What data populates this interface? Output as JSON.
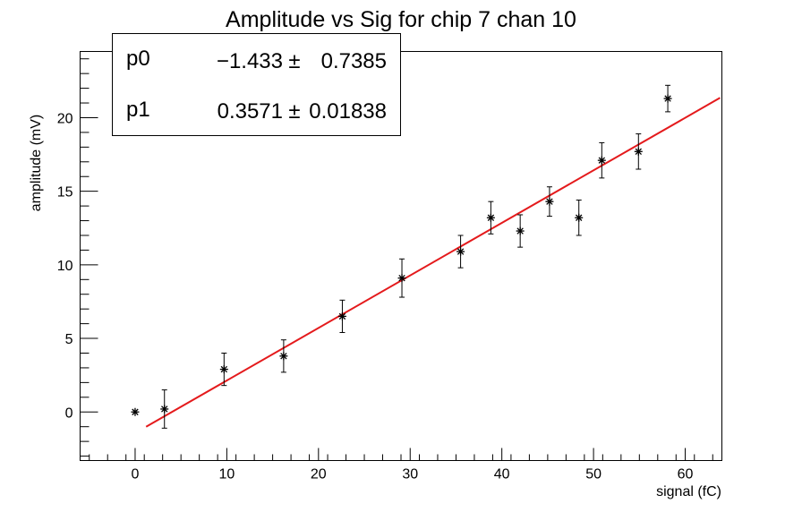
{
  "chart_data": {
    "type": "scatter",
    "title": "Amplitude vs Sig for chip 7 chan 10",
    "xlabel": "signal (fC)",
    "ylabel": "amplitude (mV)",
    "xlim": [
      -6,
      64
    ],
    "ylim": [
      -3.3,
      24.5
    ],
    "xticks": [
      0,
      10,
      20,
      30,
      40,
      50,
      60
    ],
    "xtick_labels": [
      "0",
      "10",
      "20",
      "30",
      "40",
      "50",
      "60"
    ],
    "yticks": [
      0,
      5,
      10,
      15,
      20
    ],
    "ytick_labels": [
      "0",
      "5",
      "10",
      "15",
      "20"
    ],
    "grid": false,
    "series": [
      {
        "marker": "star",
        "color": "#000000",
        "points": [
          {
            "x": 0.0,
            "y": 0.0,
            "err": 0.0
          },
          {
            "x": 3.2,
            "y": 0.2,
            "err": 1.3
          },
          {
            "x": 9.7,
            "y": 2.9,
            "err": 1.1
          },
          {
            "x": 16.2,
            "y": 3.8,
            "err": 1.1
          },
          {
            "x": 22.6,
            "y": 6.5,
            "err": 1.1
          },
          {
            "x": 29.1,
            "y": 9.1,
            "err": 1.3
          },
          {
            "x": 35.5,
            "y": 10.9,
            "err": 1.1
          },
          {
            "x": 38.8,
            "y": 13.2,
            "err": 1.1
          },
          {
            "x": 42.0,
            "y": 12.3,
            "err": 1.1
          },
          {
            "x": 45.2,
            "y": 14.3,
            "err": 1.0
          },
          {
            "x": 48.4,
            "y": 13.2,
            "err": 1.2
          },
          {
            "x": 50.9,
            "y": 17.1,
            "err": 1.2
          },
          {
            "x": 54.9,
            "y": 17.7,
            "err": 1.2
          },
          {
            "x": 58.1,
            "y": 21.3,
            "err": 0.9
          }
        ]
      }
    ],
    "fit": {
      "color": "#e41a1c",
      "intercept": -1.433,
      "slope": 0.3571,
      "x_range": [
        1.2,
        63.8
      ]
    },
    "stats_box": {
      "rows": [
        {
          "name": "p0",
          "value": "−1.433",
          "pm": "±",
          "error": "0.7385"
        },
        {
          "name": "p1",
          "value": "0.3571",
          "pm": "±",
          "error": "0.01838"
        }
      ]
    }
  }
}
